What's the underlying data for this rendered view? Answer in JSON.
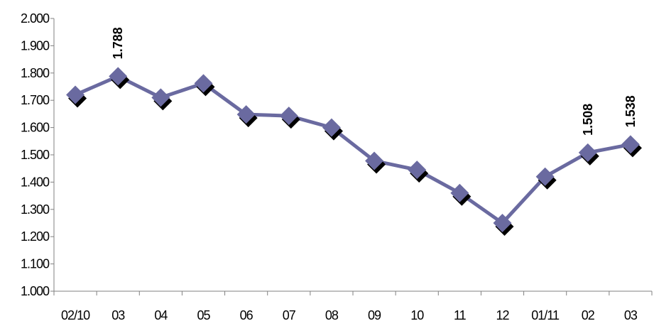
{
  "chart_data": {
    "type": "line",
    "categories": [
      "02/10",
      "03",
      "04",
      "05",
      "06",
      "07",
      "08",
      "09",
      "10",
      "11",
      "12",
      "01/11",
      "02",
      "03"
    ],
    "series": [
      {
        "values": [
          1720,
          1788,
          1710,
          1762,
          1648,
          1643,
          1600,
          1478,
          1445,
          1360,
          1250,
          1420,
          1508,
          1538
        ]
      }
    ],
    "data_labels": [
      {
        "index": 1,
        "text": "1.788"
      },
      {
        "index": 12,
        "text": "1.508"
      },
      {
        "index": 13,
        "text": "1.538"
      }
    ],
    "y_ticks": [
      "1.000",
      "1.100",
      "1.200",
      "1.300",
      "1.400",
      "1.500",
      "1.600",
      "1.700",
      "1.800",
      "1.900",
      "2.000"
    ],
    "ylim": [
      1000,
      2000
    ],
    "title": "",
    "xlabel": "",
    "ylabel": "",
    "grid": false,
    "legend": "none",
    "colors": {
      "line": "#6A6AA0",
      "marker": "#6A6AA0",
      "marker_shadow": "#000000",
      "axis": "#808080"
    },
    "marker_shape": "diamond"
  }
}
